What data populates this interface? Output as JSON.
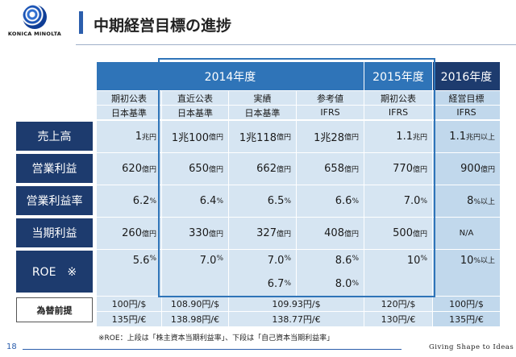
{
  "header": {
    "logo_text": "KONICA MINOLTA",
    "title": "中期経営目標の進捗"
  },
  "table": {
    "year_headers": [
      "2014年度",
      "2015年度",
      "2016年度"
    ],
    "sub_headers_1": [
      "期初公表",
      "直近公表",
      "実績",
      "参考値",
      "期初公表",
      "経営目標"
    ],
    "sub_headers_2": [
      "日本基準",
      "日本基準",
      "日本基準",
      "IFRS",
      "IFRS",
      "IFRS"
    ],
    "rows": [
      {
        "label": "売上高",
        "values": [
          [
            "1",
            "兆円"
          ],
          [
            "1兆100",
            "億円"
          ],
          [
            "1兆118",
            "億円"
          ],
          [
            "1兆28",
            "億円"
          ],
          [
            "1.1",
            "兆円"
          ],
          [
            "1.1",
            "兆円以上"
          ]
        ]
      },
      {
        "label": "営業利益",
        "values": [
          [
            "620",
            "億円"
          ],
          [
            "650",
            "億円"
          ],
          [
            "662",
            "億円"
          ],
          [
            "658",
            "億円"
          ],
          [
            "770",
            "億円"
          ],
          [
            "900",
            "億円"
          ]
        ]
      },
      {
        "label": "営業利益率",
        "values": [
          [
            "6.2",
            "%"
          ],
          [
            "6.4",
            "%"
          ],
          [
            "6.5",
            "%"
          ],
          [
            "6.6",
            "%"
          ],
          [
            "7.0",
            "%"
          ],
          [
            "8",
            "%以上"
          ]
        ]
      },
      {
        "label": "当期利益",
        "values": [
          [
            "260",
            "億円"
          ],
          [
            "330",
            "億円"
          ],
          [
            "327",
            "億円"
          ],
          [
            "408",
            "億円"
          ],
          [
            "500",
            "億円"
          ],
          [
            "N/A",
            ""
          ]
        ]
      },
      {
        "label": "ROE　※",
        "values": [
          [
            "5.6",
            "%"
          ],
          [
            "7.0",
            "%"
          ],
          [
            "7.0",
            "%"
          ],
          [
            "8.6",
            "%"
          ],
          [
            "10",
            "%"
          ],
          [
            "10",
            "%以上"
          ]
        ],
        "values_lower": [
          [
            "6.7",
            "%"
          ],
          [
            "8.0",
            "%"
          ]
        ]
      }
    ],
    "rate_label": "為替前提",
    "rates": {
      "c1": [
        "100円/$",
        "135円/€"
      ],
      "c2": [
        "108.90円/$",
        "138.98円/€"
      ],
      "c34": [
        "109.93円/$",
        "138.77円/€"
      ],
      "c5": [
        "120円/$",
        "130円/€"
      ],
      "c6": [
        "100円/$",
        "135円/€"
      ]
    }
  },
  "footer": {
    "note": "※ROE：上段は「株主資本当期利益率」、下段は「自己資本当期利益率」",
    "page_number": "18",
    "slogan": "Giving Shape to Ideas"
  }
}
